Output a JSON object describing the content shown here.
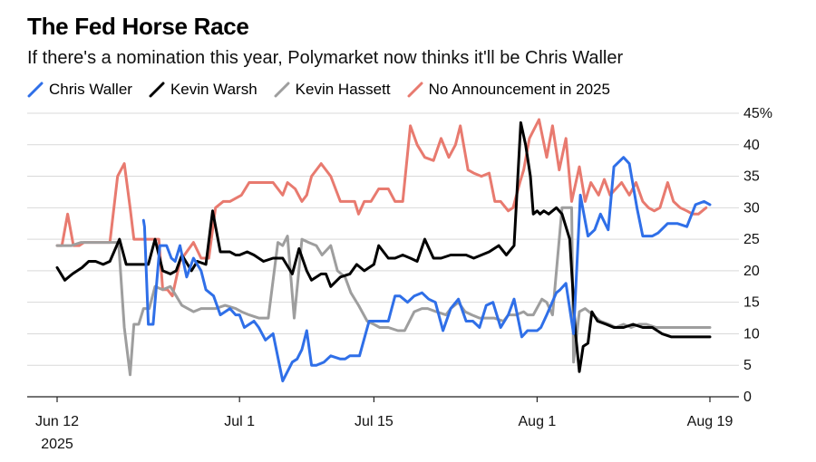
{
  "title": "The Fed Horse Race",
  "subtitle": "If there's a nomination this year, Polymarket now thinks it'll be Chris Waller",
  "chart_data": {
    "type": "line",
    "title": "The Fed Horse Race",
    "subtitle": "If there's a nomination this year, Polymarket now thinks it'll be Chris Waller",
    "xlabel": "",
    "ylabel": "",
    "ylim": [
      0,
      45
    ],
    "y_ticks": [
      0,
      5,
      10,
      15,
      20,
      25,
      30,
      35,
      40,
      45
    ],
    "y_tick_labels": [
      "0",
      "5",
      "10",
      "15",
      "20",
      "25",
      "30",
      "35",
      "40",
      "45%"
    ],
    "x_ticks": [
      {
        "day": 0,
        "label": "Jun 12",
        "sublabel": "2025"
      },
      {
        "day": 19,
        "label": "Jul 1",
        "sublabel": ""
      },
      {
        "day": 33,
        "label": "Jul 15",
        "sublabel": ""
      },
      {
        "day": 50,
        "label": "Aug 1",
        "sublabel": ""
      },
      {
        "day": 68,
        "label": "Aug 19",
        "sublabel": ""
      }
    ],
    "grid": true,
    "legend_position": "top-left",
    "series": [
      {
        "name": "Chris Waller",
        "color": "#2f6fe8",
        "x": [
          9,
          9.1,
          9.5,
          10,
          10.7,
          11,
          11.4,
          11.9,
          12.3,
          12.8,
          13.5,
          14.2,
          15,
          15.5,
          16.3,
          17,
          18,
          18.6,
          19,
          19.5,
          20.5,
          21,
          21.7,
          22.5,
          23.5,
          24.5,
          25,
          25.5,
          26,
          26.5,
          27,
          27.8,
          28.5,
          29.5,
          30,
          30.5,
          31.5,
          32.5,
          33,
          33.5,
          34.5,
          35.2,
          35.7,
          36.5,
          37.2,
          38,
          38.7,
          39.4,
          40.2,
          41,
          41.8,
          42.6,
          43.3,
          44,
          44.7,
          45.4,
          46.2,
          47,
          47.6,
          48.4,
          49,
          50,
          50.4,
          51,
          52,
          52.4,
          53,
          53.8,
          54.5,
          55.3,
          56,
          56.6,
          57.4,
          58,
          59,
          59.6,
          60.4,
          61,
          62,
          62.6,
          63.6,
          64.6,
          65.6,
          66.5,
          67.4,
          68
        ],
        "y": [
          28,
          27,
          11.5,
          11.5,
          24,
          24,
          24,
          22,
          21.5,
          24,
          19,
          22,
          20,
          17,
          16,
          13,
          14,
          13,
          13,
          11,
          12,
          11,
          9,
          10,
          2.5,
          5.5,
          6,
          7.5,
          10.5,
          5,
          5,
          5.5,
          6.5,
          6,
          6,
          6.5,
          6.5,
          12,
          12,
          12,
          12,
          16,
          16,
          15,
          16,
          16.5,
          15.5,
          15,
          10.5,
          14,
          15.5,
          12,
          12,
          11,
          14.5,
          15,
          11,
          13,
          15.5,
          9.5,
          10.5,
          10.5,
          11,
          13,
          16.5,
          17,
          18,
          10,
          32,
          25.5,
          26.5,
          29,
          26.5,
          36.5,
          38,
          37,
          30,
          25.5,
          25.5,
          26,
          27.5,
          27.5,
          27,
          30.5,
          31,
          30.5
        ]
      },
      {
        "name": "Kevin Warsh",
        "color": "#000000",
        "x": [
          0,
          0.8,
          1.6,
          2.6,
          3.3,
          4,
          4.8,
          5.5,
          6.5,
          7.2,
          8,
          8.5,
          9.5,
          10.2,
          11,
          11.8,
          12.4,
          13,
          14,
          14.6,
          15.5,
          16.2,
          17,
          17.4,
          18,
          18.6,
          19,
          19.8,
          20.5,
          21.5,
          22.5,
          23.5,
          24.5,
          25.2,
          26,
          26.5,
          27.5,
          28,
          28.5,
          29.5,
          30.5,
          31.2,
          32,
          33,
          33.5,
          34.5,
          35.2,
          36,
          36.8,
          37.5,
          38.3,
          39.2,
          40,
          41,
          41.8,
          42.6,
          43.4,
          44.2,
          45,
          46,
          46.8,
          47.6,
          48.3,
          48.8,
          49.3,
          49.6,
          50,
          50.3,
          50.7,
          51.2,
          52,
          52.6,
          53.4,
          54,
          54.4,
          54.8,
          55.3,
          55.7,
          56.3,
          57.2,
          58,
          59,
          60,
          61,
          62,
          63,
          64,
          65,
          66,
          67,
          68
        ],
        "y": [
          20.5,
          18.5,
          19.5,
          20.5,
          21.5,
          21.5,
          21,
          21.5,
          25,
          21,
          21,
          21,
          21,
          25,
          20,
          19.5,
          20,
          22.5,
          20,
          21.5,
          21,
          29.5,
          23,
          23,
          23,
          22.5,
          22.5,
          23,
          22.5,
          21.5,
          22,
          22,
          19.5,
          23.5,
          20,
          18.5,
          19.5,
          19.5,
          17.5,
          19,
          19.5,
          21,
          20,
          21,
          24,
          22,
          22,
          22.5,
          22,
          21.5,
          25,
          22,
          22,
          22.5,
          22.5,
          22.5,
          22,
          22.5,
          23,
          24,
          22.5,
          24,
          43.5,
          40,
          35,
          29,
          29.5,
          29,
          29.5,
          29,
          30,
          29,
          25,
          10,
          4,
          8,
          8.5,
          13.5,
          12,
          11.5,
          11,
          11,
          11.5,
          11,
          11,
          10,
          9.5,
          9.5,
          9.5,
          9.5,
          9.5
        ]
      },
      {
        "name": "Kevin Hassett",
        "color": "#9e9e9e",
        "x": [
          0,
          0.5,
          1.5,
          2.5,
          3.5,
          5.5,
          6,
          6.4,
          7,
          7.6,
          8,
          8.5,
          9,
          9.6,
          10.2,
          11,
          11.8,
          12.4,
          13,
          13.6,
          14.2,
          15,
          15.6,
          16.5,
          17.5,
          18.6,
          19.2,
          20,
          21,
          22,
          23,
          23.5,
          24,
          24.7,
          25.5,
          26.2,
          27,
          27.6,
          28.5,
          29.2,
          30,
          30.6,
          31.4,
          32.3,
          33,
          33.6,
          34.5,
          35.5,
          36.2,
          37.2,
          38,
          38.6,
          39.5,
          40.5,
          41,
          41.8,
          42.5,
          43.2,
          44,
          44.8,
          45.5,
          46.5,
          47,
          47.8,
          48.6,
          49,
          49.6,
          50.5,
          51,
          51.6,
          52.6,
          53.6,
          53.8,
          54.4,
          55,
          55.8,
          56.6,
          57.5,
          58.2,
          59,
          59.8,
          60.6,
          61.4,
          62.4,
          63.2,
          64,
          64.8,
          65.6,
          66.5,
          67.4,
          68
        ],
        "y": [
          24,
          24,
          24,
          24.5,
          24.5,
          24.5,
          24.5,
          24.5,
          11,
          3.5,
          11.5,
          11.5,
          14,
          14,
          17.5,
          17,
          17.5,
          16,
          14.5,
          14,
          13.5,
          14,
          14,
          14,
          14.5,
          14,
          13.5,
          13,
          12.5,
          12.5,
          24.5,
          24,
          25.5,
          12.5,
          25,
          24.5,
          24,
          22.5,
          24,
          20,
          19,
          16.5,
          14.5,
          12,
          11.5,
          11,
          11,
          10.5,
          10.5,
          13.5,
          14,
          14,
          13.5,
          13,
          14,
          15,
          13.5,
          13,
          12.5,
          12.5,
          12.5,
          12,
          13,
          13,
          13.5,
          13,
          13,
          15.5,
          15,
          13,
          30,
          30,
          5.5,
          13.5,
          14,
          13,
          12,
          11.5,
          11,
          11.5,
          11,
          11.5,
          11.5,
          11,
          11,
          11,
          11,
          11,
          11,
          11,
          11
        ]
      },
      {
        "name": "No Announcement in 2025",
        "color": "#e87a6f",
        "x": [
          0,
          0.5,
          1.1,
          1.7,
          2.3,
          2.8,
          3.5,
          4.5,
          5.5,
          6.3,
          7,
          7.6,
          8,
          8.5,
          9.2,
          10,
          10.6,
          11,
          11.5,
          12,
          12.8,
          13.5,
          14.2,
          15,
          15.8,
          16.5,
          17.3,
          18,
          18.6,
          19.2,
          20,
          20.8,
          21.5,
          22.5,
          23.5,
          24,
          24.8,
          25.5,
          26,
          26.5,
          27.5,
          28,
          28.5,
          29.5,
          30,
          31,
          31.4,
          32,
          32.7,
          33.5,
          34.5,
          35.2,
          36,
          36.8,
          37.5,
          38.3,
          39.2,
          40,
          40.8,
          41.5,
          42,
          42.8,
          43.4,
          44.2,
          45,
          45.6,
          46.2,
          47,
          47.5,
          48.2,
          48.6,
          49.2,
          50.2,
          51,
          51.6,
          52.3,
          53,
          53.6,
          54.4,
          55,
          55.6,
          56.4,
          57,
          57.6,
          58.2,
          58.8,
          59.6,
          60.3,
          61,
          61.6,
          62.2,
          62.8,
          63.6,
          64.2,
          64.9,
          65.6,
          66.2,
          66.8,
          67.6
        ],
        "y": [
          24,
          24,
          29,
          24,
          24,
          24.5,
          24.5,
          24.5,
          24.5,
          35,
          37,
          30,
          25,
          25,
          25,
          25,
          25,
          17,
          17,
          16,
          21.5,
          23,
          24.5,
          22,
          22,
          30,
          31,
          31,
          31.5,
          32,
          34,
          34,
          34,
          34,
          32,
          34,
          33,
          31,
          32,
          35,
          37,
          36,
          35,
          31,
          31,
          31,
          29,
          31,
          31,
          33,
          33,
          31,
          31,
          43,
          40,
          38,
          37.5,
          41,
          38,
          40,
          43,
          36,
          35.5,
          35,
          35.5,
          31,
          31,
          29.5,
          30,
          34,
          36,
          41,
          44,
          38,
          43,
          36,
          41,
          31,
          36.5,
          31,
          34,
          32,
          34.5,
          32,
          33,
          34,
          32,
          34,
          31,
          30,
          29.5,
          30,
          34,
          31,
          30,
          29.5,
          29,
          29,
          30
        ]
      }
    ]
  }
}
